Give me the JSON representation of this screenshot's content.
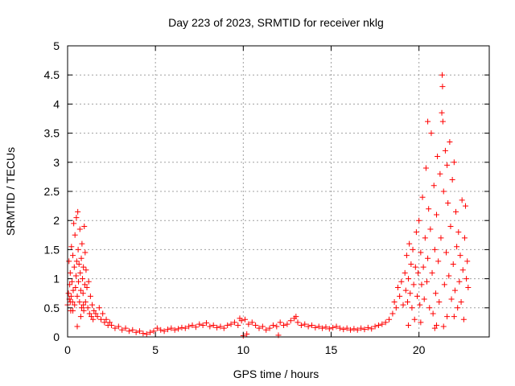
{
  "chart_data": {
    "type": "scatter",
    "title": "Day 223 of 2023, SRMTID for receiver nklg",
    "xlabel": "GPS time / hours",
    "ylabel": "SRMTID / TECUs",
    "xlim": [
      0,
      24
    ],
    "ylim": [
      0,
      5
    ],
    "xticks": [
      0,
      5,
      10,
      15,
      20
    ],
    "xtick_labels": [
      "0",
      "5",
      "10",
      "15",
      "20"
    ],
    "yticks": [
      0,
      0.5,
      1,
      1.5,
      2,
      2.5,
      3,
      3.5,
      4,
      4.5,
      5
    ],
    "ytick_labels": [
      "0",
      "0.5",
      "1",
      "1.5",
      "2",
      "2.5",
      "3",
      "3.5",
      "4",
      "4.5",
      "5"
    ],
    "grid": true,
    "marker": "+",
    "series": [
      {
        "name": "SRMTID",
        "color": "#ff0000",
        "points": [
          [
            0.0,
            0.55
          ],
          [
            0.05,
            0.75
          ],
          [
            0.08,
            1.3
          ],
          [
            0.1,
            0.65
          ],
          [
            0.12,
            0.9
          ],
          [
            0.15,
            1.1
          ],
          [
            0.18,
            0.45
          ],
          [
            0.2,
            0.7
          ],
          [
            0.22,
            1.55
          ],
          [
            0.25,
            0.95
          ],
          [
            0.28,
            0.6
          ],
          [
            0.3,
            1.4
          ],
          [
            0.32,
            0.8
          ],
          [
            0.35,
            1.95
          ],
          [
            0.38,
            1.2
          ],
          [
            0.4,
            0.55
          ],
          [
            0.42,
            1.75
          ],
          [
            0.45,
            0.85
          ],
          [
            0.48,
            1.05
          ],
          [
            0.5,
            2.05
          ],
          [
            0.52,
            1.3
          ],
          [
            0.55,
            0.7
          ],
          [
            0.58,
            2.15
          ],
          [
            0.6,
            1.5
          ],
          [
            0.62,
            0.95
          ],
          [
            0.65,
            1.25
          ],
          [
            0.68,
            0.6
          ],
          [
            0.7,
            1.85
          ],
          [
            0.72,
            1.1
          ],
          [
            0.75,
            0.8
          ],
          [
            0.78,
            1.35
          ],
          [
            0.8,
            0.5
          ],
          [
            0.82,
            1.6
          ],
          [
            0.85,
            1.0
          ],
          [
            0.88,
            0.75
          ],
          [
            0.9,
            1.2
          ],
          [
            0.92,
            0.45
          ],
          [
            0.95,
            1.9
          ],
          [
            0.98,
            0.9
          ],
          [
            1.0,
            1.45
          ],
          [
            1.02,
            0.6
          ],
          [
            1.05,
            1.15
          ],
          [
            1.1,
            0.85
          ],
          [
            1.15,
            0.5
          ],
          [
            1.2,
            0.95
          ],
          [
            1.25,
            0.4
          ],
          [
            1.3,
            0.7
          ],
          [
            1.35,
            0.35
          ],
          [
            1.4,
            0.55
          ],
          [
            1.45,
            0.3
          ],
          [
            1.5,
            0.45
          ],
          [
            1.6,
            0.4
          ],
          [
            1.7,
            0.35
          ],
          [
            1.8,
            0.5
          ],
          [
            1.9,
            0.3
          ],
          [
            2.0,
            0.4
          ],
          [
            2.1,
            0.25
          ],
          [
            2.2,
            0.3
          ],
          [
            2.3,
            0.2
          ],
          [
            2.4,
            0.25
          ],
          [
            0.55,
            0.18
          ],
          [
            0.3,
            0.45
          ],
          [
            0.15,
            0.6
          ],
          [
            0.75,
            0.35
          ],
          [
            0.9,
            0.55
          ],
          [
            2.5,
            0.2
          ],
          [
            2.7,
            0.15
          ],
          [
            2.9,
            0.18
          ],
          [
            3.1,
            0.12
          ],
          [
            3.3,
            0.15
          ],
          [
            3.5,
            0.1
          ],
          [
            3.7,
            0.12
          ],
          [
            3.9,
            0.08
          ],
          [
            4.1,
            0.1
          ],
          [
            4.3,
            0.06
          ],
          [
            4.5,
            0.05
          ],
          [
            4.7,
            0.08
          ],
          [
            4.9,
            0.1
          ],
          [
            5.1,
            0.15
          ],
          [
            5.3,
            0.12
          ],
          [
            5.5,
            0.1
          ],
          [
            5.7,
            0.13
          ],
          [
            5.9,
            0.15
          ],
          [
            6.1,
            0.12
          ],
          [
            6.3,
            0.14
          ],
          [
            6.5,
            0.16
          ],
          [
            6.7,
            0.15
          ],
          [
            6.9,
            0.18
          ],
          [
            7.1,
            0.2
          ],
          [
            7.3,
            0.17
          ],
          [
            7.5,
            0.22
          ],
          [
            7.7,
            0.2
          ],
          [
            7.9,
            0.24
          ],
          [
            8.1,
            0.18
          ],
          [
            8.3,
            0.2
          ],
          [
            8.5,
            0.16
          ],
          [
            8.7,
            0.18
          ],
          [
            8.9,
            0.15
          ],
          [
            9.1,
            0.2
          ],
          [
            9.3,
            0.22
          ],
          [
            9.5,
            0.25
          ],
          [
            9.7,
            0.2
          ],
          [
            9.9,
            0.28
          ],
          [
            10.1,
            0.3
          ],
          [
            10.3,
            0.22
          ],
          [
            10.5,
            0.25
          ],
          [
            10.7,
            0.2
          ],
          [
            10.9,
            0.15
          ],
          [
            11.1,
            0.18
          ],
          [
            11.3,
            0.12
          ],
          [
            11.5,
            0.15
          ],
          [
            11.7,
            0.2
          ],
          [
            11.9,
            0.18
          ],
          [
            12.1,
            0.25
          ],
          [
            12.3,
            0.2
          ],
          [
            12.5,
            0.22
          ],
          [
            12.7,
            0.28
          ],
          [
            12.9,
            0.32
          ],
          [
            13.1,
            0.25
          ],
          [
            13.3,
            0.2
          ],
          [
            13.5,
            0.22
          ],
          [
            13.7,
            0.18
          ],
          [
            13.9,
            0.2
          ],
          [
            14.1,
            0.16
          ],
          [
            14.3,
            0.18
          ],
          [
            14.5,
            0.15
          ],
          [
            14.7,
            0.17
          ],
          [
            14.9,
            0.14
          ],
          [
            15.1,
            0.16
          ],
          [
            15.3,
            0.18
          ],
          [
            15.5,
            0.15
          ],
          [
            15.7,
            0.13
          ],
          [
            15.9,
            0.15
          ],
          [
            16.1,
            0.12
          ],
          [
            16.3,
            0.14
          ],
          [
            16.5,
            0.12
          ],
          [
            16.7,
            0.15
          ],
          [
            16.9,
            0.13
          ],
          [
            17.1,
            0.16
          ],
          [
            17.3,
            0.14
          ],
          [
            17.5,
            0.18
          ],
          [
            17.7,
            0.2
          ],
          [
            17.9,
            0.22
          ],
          [
            18.1,
            0.25
          ],
          [
            18.3,
            0.3
          ],
          [
            10.0,
            0.02
          ],
          [
            10.2,
            0.05
          ],
          [
            12.0,
            0.03
          ],
          [
            13.0,
            0.35
          ],
          [
            9.8,
            0.32
          ],
          [
            18.5,
            0.4
          ],
          [
            18.6,
            0.6
          ],
          [
            18.7,
            0.5
          ],
          [
            18.8,
            0.85
          ],
          [
            18.9,
            0.7
          ],
          [
            19.0,
            0.95
          ],
          [
            19.1,
            0.55
          ],
          [
            19.2,
            1.1
          ],
          [
            19.25,
            0.8
          ],
          [
            19.3,
            1.4
          ],
          [
            19.35,
            0.6
          ],
          [
            19.4,
            1.0
          ],
          [
            19.45,
            1.6
          ],
          [
            19.5,
            0.75
          ],
          [
            19.55,
            1.25
          ],
          [
            19.6,
            0.5
          ],
          [
            19.65,
            1.5
          ],
          [
            19.7,
            0.9
          ],
          [
            19.75,
            0.3
          ],
          [
            19.8,
            1.2
          ],
          [
            19.85,
            1.8
          ],
          [
            19.9,
            0.7
          ],
          [
            19.95,
            1.1
          ],
          [
            20.0,
            2.0
          ],
          [
            20.05,
            0.55
          ],
          [
            20.1,
            1.45
          ],
          [
            20.15,
            0.9
          ],
          [
            20.2,
            2.4
          ],
          [
            20.25,
            1.2
          ],
          [
            20.3,
            0.65
          ],
          [
            20.35,
            1.7
          ],
          [
            20.4,
            2.9
          ],
          [
            20.45,
            0.95
          ],
          [
            20.5,
            1.35
          ],
          [
            20.55,
            2.2
          ],
          [
            20.6,
            0.5
          ],
          [
            20.65,
            1.85
          ],
          [
            20.7,
            3.5
          ],
          [
            20.75,
            1.1
          ],
          [
            20.8,
            0.4
          ],
          [
            20.85,
            2.6
          ],
          [
            20.9,
            1.5
          ],
          [
            20.95,
            0.75
          ],
          [
            21.0,
            2.1
          ],
          [
            21.05,
            3.1
          ],
          [
            21.1,
            1.3
          ],
          [
            21.15,
            0.6
          ],
          [
            21.2,
            2.8
          ],
          [
            21.25,
            1.7
          ],
          [
            21.3,
            3.85
          ],
          [
            21.32,
            4.5
          ],
          [
            21.34,
            4.3
          ],
          [
            21.36,
            3.7
          ],
          [
            21.4,
            2.5
          ],
          [
            21.45,
            0.9
          ],
          [
            21.5,
            3.2
          ],
          [
            21.55,
            1.45
          ],
          [
            21.6,
            0.35
          ],
          [
            21.65,
            2.3
          ],
          [
            21.7,
            1.05
          ],
          [
            21.75,
            3.35
          ],
          [
            21.8,
            1.9
          ],
          [
            21.85,
            0.65
          ],
          [
            21.9,
            2.7
          ],
          [
            21.95,
            1.25
          ],
          [
            22.0,
            3.0
          ],
          [
            22.05,
            0.8
          ],
          [
            22.1,
            2.15
          ],
          [
            22.15,
            1.55
          ],
          [
            22.2,
            0.5
          ],
          [
            22.25,
            1.8
          ],
          [
            22.3,
            0.95
          ],
          [
            22.35,
            1.4
          ],
          [
            22.4,
            0.6
          ],
          [
            22.45,
            2.35
          ],
          [
            22.5,
            1.15
          ],
          [
            22.55,
            0.3
          ],
          [
            22.6,
            1.7
          ],
          [
            22.65,
            2.25
          ],
          [
            22.7,
            1.0
          ],
          [
            22.75,
            1.3
          ],
          [
            22.8,
            0.85
          ],
          [
            21.0,
            0.2
          ],
          [
            20.1,
            0.25
          ],
          [
            20.9,
            0.15
          ],
          [
            21.4,
            0.18
          ],
          [
            22.0,
            0.35
          ],
          [
            19.4,
            0.2
          ],
          [
            20.5,
            3.7
          ],
          [
            21.6,
            2.95
          ]
        ]
      }
    ]
  }
}
